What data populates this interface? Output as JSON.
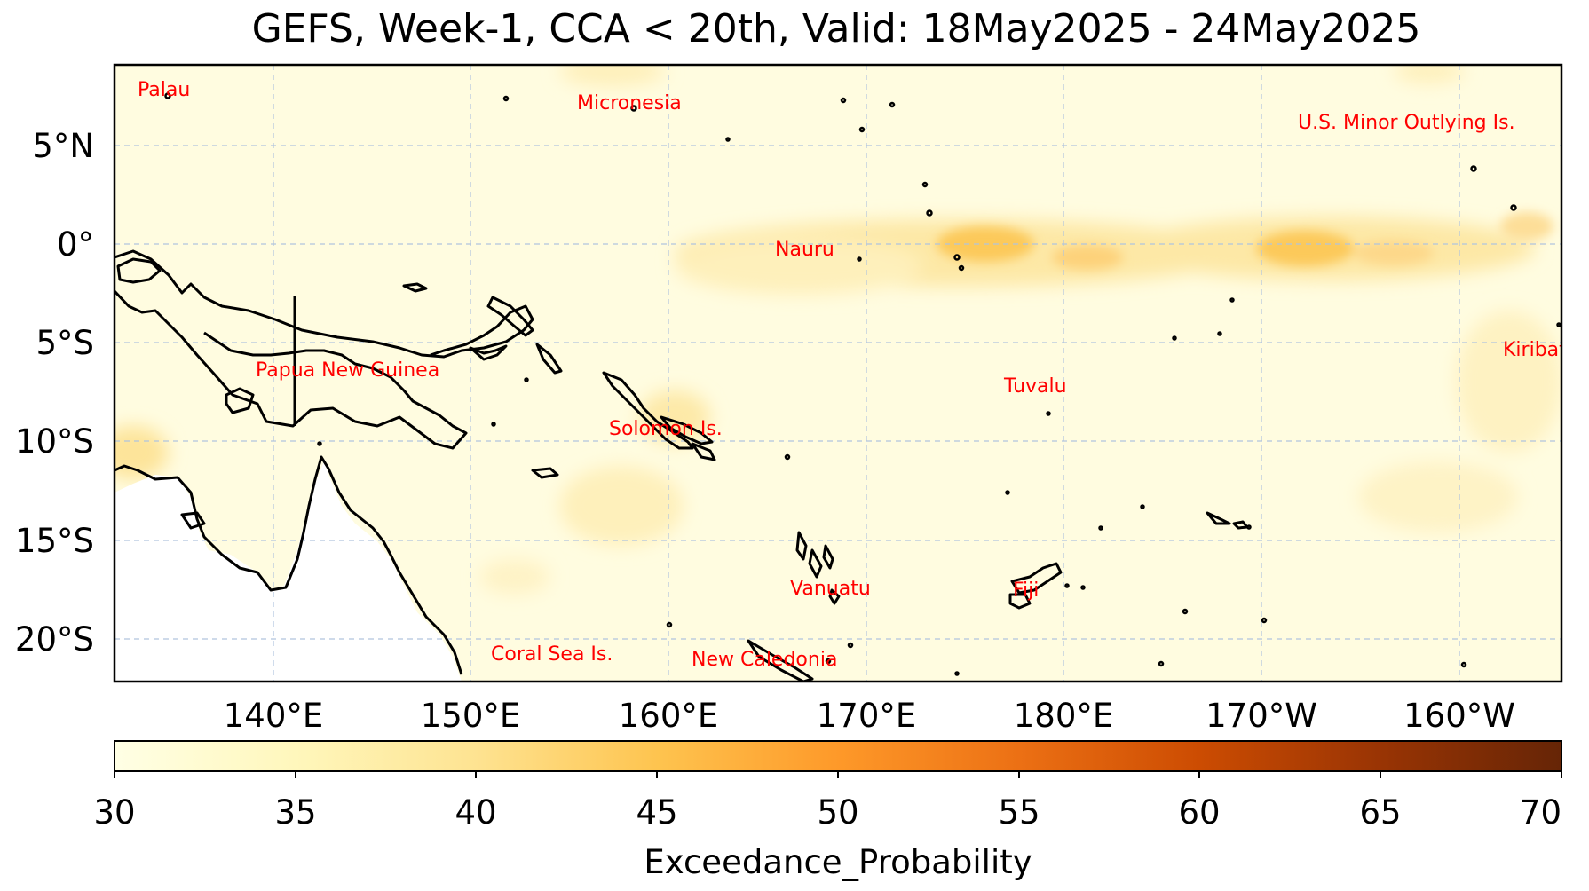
{
  "title": "GEFS, Week-1, CCA < 20th, Valid: 18May2025 - 24May2025",
  "axes": {
    "lat_ticks": [
      "5°N",
      "0°",
      "5°S",
      "10°S",
      "15°S",
      "20°S"
    ],
    "lon_ticks": [
      "140°E",
      "150°E",
      "160°E",
      "170°E",
      "180°E",
      "170°W",
      "160°W"
    ]
  },
  "colorbar": {
    "label": "Exceedance_Probability",
    "ticks": [
      "30",
      "35",
      "40",
      "45",
      "50",
      "55",
      "60",
      "65",
      "70"
    ],
    "colors": [
      "#ffffe5",
      "#fff7bc",
      "#fee391",
      "#fec44f",
      "#fe9929",
      "#ec7014",
      "#cc4c02",
      "#993404",
      "#662506"
    ]
  },
  "places": [
    {
      "key": "palau",
      "label": "Palau"
    },
    {
      "key": "micronesia",
      "label": "Micronesia"
    },
    {
      "key": "usminor",
      "label": "U.S. Minor Outlying Is."
    },
    {
      "key": "nauru",
      "label": "Nauru"
    },
    {
      "key": "kiribati",
      "label": "Kiribati"
    },
    {
      "key": "png",
      "label": "Papua New Guinea"
    },
    {
      "key": "tuvalu",
      "label": "Tuvalu"
    },
    {
      "key": "solomon",
      "label": "Solomon Is."
    },
    {
      "key": "vanuatu",
      "label": "Vanuatu"
    },
    {
      "key": "fiji",
      "label": "Fiji"
    },
    {
      "key": "coralsea",
      "label": "Coral Sea Is."
    },
    {
      "key": "newcaledonia",
      "label": "New Caledonia"
    }
  ]
}
